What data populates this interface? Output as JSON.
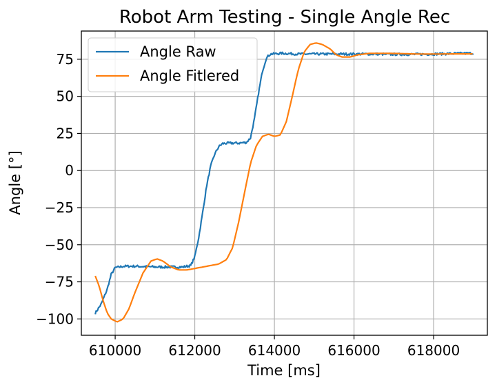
{
  "chart_data": {
    "type": "line",
    "title": "Robot Arm Testing - Single Angle Rec",
    "xlabel": "Time [ms]",
    "ylabel": "Angle [°]",
    "xlim": [
      609150,
      619350
    ],
    "ylim": [
      -111,
      94
    ],
    "xticks": [
      610000,
      612000,
      614000,
      616000,
      618000
    ],
    "yticks": [
      75,
      50,
      25,
      0,
      -25,
      -50,
      -75,
      -100
    ],
    "grid": true,
    "legend_position": "top-left",
    "series": [
      {
        "name": "Angle Raw",
        "color": "#1f77b4",
        "noise": 0.8,
        "points": [
          [
            609500,
            -96
          ],
          [
            609650,
            -90
          ],
          [
            609800,
            -80
          ],
          [
            609900,
            -70
          ],
          [
            610000,
            -65.5
          ],
          [
            610200,
            -64.5
          ],
          [
            610500,
            -64.5
          ],
          [
            610800,
            -64.8
          ],
          [
            611100,
            -65
          ],
          [
            611400,
            -65
          ],
          [
            611700,
            -65
          ],
          [
            611900,
            -64
          ],
          [
            612000,
            -58
          ],
          [
            612100,
            -45
          ],
          [
            612200,
            -28
          ],
          [
            612300,
            -10
          ],
          [
            612400,
            3
          ],
          [
            612500,
            11
          ],
          [
            612600,
            16
          ],
          [
            612700,
            18.2
          ],
          [
            612900,
            18.5
          ],
          [
            613100,
            18.5
          ],
          [
            613300,
            19
          ],
          [
            613400,
            22
          ],
          [
            613500,
            35
          ],
          [
            613600,
            52
          ],
          [
            613700,
            67
          ],
          [
            613800,
            76
          ],
          [
            613900,
            78.5
          ],
          [
            614200,
            79
          ],
          [
            614600,
            78.5
          ],
          [
            615000,
            78.5
          ],
          [
            615500,
            78.5
          ],
          [
            616000,
            78.5
          ],
          [
            616500,
            78.5
          ],
          [
            617000,
            78.3
          ],
          [
            617500,
            78.3
          ],
          [
            618000,
            78.5
          ],
          [
            618500,
            78.8
          ],
          [
            619000,
            79
          ]
        ]
      },
      {
        "name": "Angle Fitlered",
        "color": "#ff7f0e",
        "noise": 0,
        "points": [
          [
            609500,
            -71
          ],
          [
            609600,
            -78
          ],
          [
            609700,
            -88
          ],
          [
            609800,
            -96
          ],
          [
            609900,
            -100
          ],
          [
            610050,
            -102
          ],
          [
            610200,
            -100
          ],
          [
            610350,
            -93
          ],
          [
            610500,
            -82
          ],
          [
            610700,
            -69
          ],
          [
            610900,
            -61
          ],
          [
            611050,
            -59.5
          ],
          [
            611200,
            -61
          ],
          [
            611400,
            -65
          ],
          [
            611600,
            -67
          ],
          [
            611800,
            -67
          ],
          [
            612000,
            -66
          ],
          [
            612300,
            -64.5
          ],
          [
            612600,
            -63
          ],
          [
            612800,
            -60
          ],
          [
            612950,
            -52
          ],
          [
            613100,
            -35
          ],
          [
            613250,
            -15
          ],
          [
            613400,
            5
          ],
          [
            613550,
            17
          ],
          [
            613700,
            23
          ],
          [
            613850,
            24.5
          ],
          [
            614000,
            23
          ],
          [
            614150,
            24
          ],
          [
            614300,
            33
          ],
          [
            614450,
            50
          ],
          [
            614600,
            68
          ],
          [
            614750,
            80
          ],
          [
            614900,
            85
          ],
          [
            615050,
            86
          ],
          [
            615200,
            85
          ],
          [
            615400,
            82
          ],
          [
            615550,
            78
          ],
          [
            615700,
            76.5
          ],
          [
            615900,
            76.5
          ],
          [
            616100,
            78
          ],
          [
            616400,
            79
          ],
          [
            616800,
            79
          ],
          [
            617200,
            78.8
          ],
          [
            617600,
            78.5
          ],
          [
            618000,
            78.5
          ],
          [
            618500,
            78.6
          ],
          [
            619000,
            78.6
          ]
        ]
      }
    ]
  }
}
